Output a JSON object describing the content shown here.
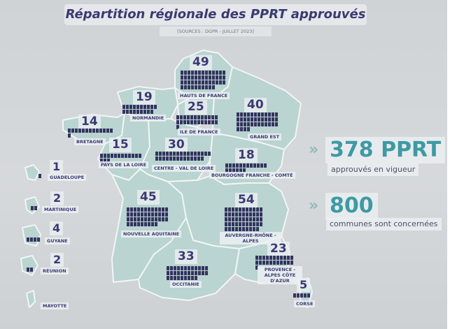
{
  "title": "Répartition régionale des PPRT approuvés",
  "source": "[SOURCES : DGPR - JUILLET 2023]",
  "colors": {
    "land": "#b9d4d1",
    "land_stroke": "#f2f5f5",
    "blocks": "#34345f",
    "accent": "#3d9aa2",
    "text": "#3a3a72"
  },
  "regions": [
    {
      "id": "hauts-de-france",
      "name": "HAUTS DE FRANCE",
      "count": 49
    },
    {
      "id": "normandie",
      "name": "NORMANDIE",
      "count": 19
    },
    {
      "id": "ile-de-france",
      "name": "ILE DE FRANCE",
      "count": 25
    },
    {
      "id": "grand-est",
      "name": "GRAND EST",
      "count": 40
    },
    {
      "id": "bretagne",
      "name": "BRETAGNE",
      "count": 14
    },
    {
      "id": "pays-de-la-loire",
      "name": "PAYS DE LA LOIRE",
      "count": 15
    },
    {
      "id": "centre-val-de-loire",
      "name": "CENTRE - VAL DE LOIRE",
      "count": 30
    },
    {
      "id": "bourgogne-franche-comte",
      "name": "BOURGOGNE FRANCHE - COMTÉ",
      "count": 18
    },
    {
      "id": "nouvelle-aquitaine",
      "name": "NOUVELLE AQUITAINE",
      "count": 45
    },
    {
      "id": "auvergne-rhone-alpes",
      "name": "AUVERGNE-RHÔNE - ALPES",
      "count": 54
    },
    {
      "id": "occitanie",
      "name": "OCCITANIE",
      "count": 33
    },
    {
      "id": "provence-alpes-cote-dazur",
      "name": "PROVENCE - ALPES CÔTE D'AZUR",
      "count": 23
    },
    {
      "id": "corse",
      "name": "CORSE",
      "count": 5
    }
  ],
  "overseas": [
    {
      "id": "guadeloupe",
      "name": "GUADELOUPE",
      "count": 1
    },
    {
      "id": "martinique",
      "name": "MARTINIQUE",
      "count": 2
    },
    {
      "id": "guyane",
      "name": "GUYANE",
      "count": 4
    },
    {
      "id": "reunion",
      "name": "RÉUNION",
      "count": 2
    },
    {
      "id": "mayotte",
      "name": "MAYOTTE",
      "count": null
    }
  ],
  "stats": {
    "pprt_value": "378 PPRT",
    "pprt_caption": "approuvés en vigueur",
    "communes_value": "800",
    "communes_caption": "communes sont concernées",
    "arrow": "»"
  }
}
